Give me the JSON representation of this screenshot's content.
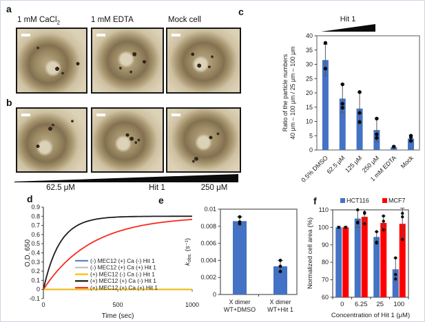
{
  "panels": {
    "a": {
      "label": "a",
      "images": [
        {
          "title_main": "1 mM CaCl",
          "title_sub": "2"
        },
        {
          "title_main": "1 mM EDTA",
          "title_sub": ""
        },
        {
          "title_main": "Mock cell",
          "title_sub": ""
        }
      ]
    },
    "b": {
      "label": "b",
      "gradient_labels": [
        "62.5 μM",
        "Hit 1",
        "250 μM"
      ]
    },
    "c": {
      "label": "c"
    },
    "d": {
      "label": "d"
    },
    "e": {
      "label": "e"
    },
    "f": {
      "label": "f"
    }
  },
  "colors": {
    "bar_blue": "#4472C4",
    "bar_red": "#FE0000",
    "line_blue": "#5B84D0",
    "line_gray": "#BFBFBF",
    "line_yellow": "#FFC000",
    "line_black": "#1A1A1A",
    "line_red": "#F8281C",
    "frame": "#808080",
    "axis": "#404040",
    "error": "#595959",
    "dot": "#0a0a0a"
  },
  "chart_data": [
    {
      "id": "c",
      "type": "bar",
      "title": "Hit 1",
      "ylabel_lines": [
        "Ratio of the particle numbers",
        "40 μm – 100 μm / 25 μm – 100 μm"
      ],
      "categories": [
        "0.5% DMSO",
        "62.5 μM",
        "125 μM",
        "250 μM",
        "1 mM EDTA",
        "Mock"
      ],
      "values": [
        31.5,
        18,
        14.5,
        7,
        1,
        4
      ],
      "errors": [
        5.5,
        5,
        5.5,
        4,
        0.4,
        1.2
      ],
      "points": [
        [
          37.5,
          28.5
        ],
        [
          23,
          16.2,
          14.8
        ],
        [
          20.3,
          13,
          9.8
        ],
        [
          11,
          5.5,
          4.2
        ],
        [
          1.2
        ],
        [
          5,
          4.5,
          3.2
        ]
      ],
      "ylim": [
        0,
        40
      ],
      "ytick_step": 5,
      "grid": false,
      "legend": "none"
    },
    {
      "id": "d",
      "type": "line",
      "xlabel": "Time (sec)",
      "ylabel": "O.D. 650",
      "xlim": [
        0,
        1000
      ],
      "ylim": [
        -0.1,
        0.9
      ],
      "xticks": [
        0,
        500,
        1000
      ],
      "ytick_step": 0.1,
      "legend_position": "inside-right",
      "series": [
        {
          "name": "(-) MEC12 (+) Ca (-) Hit 1",
          "color_key": "line_blue",
          "model": "flat",
          "value": 0
        },
        {
          "name": "(-) MEC12 (+) Ca (+) Hit 1",
          "color_key": "line_gray",
          "model": "flat",
          "value": 0
        },
        {
          "name": "(+) MEC12 (-) Ca (-) Hit 1",
          "color_key": "line_yellow",
          "model": "flat",
          "value": 0
        },
        {
          "name": "(+) MEC12 (+) Ca (-) Hit 1",
          "color_key": "line_black",
          "model": "exp_rise",
          "amplitude": 0.8,
          "tau": 110
        },
        {
          "name": "(+) MEC12 (+) Ca (+) Hit 1",
          "color_key": "line_red",
          "model": "exp_rise",
          "amplitude": 0.8,
          "tau": 320
        }
      ]
    },
    {
      "id": "e",
      "type": "bar",
      "ylabel_parts": {
        "k": "k",
        "sub": "obs.",
        "rest": " (s⁻¹)"
      },
      "categories": [
        [
          "X dimer",
          "WT+DMSO"
        ],
        [
          "X dimer",
          "WT+Hit 1"
        ]
      ],
      "values": [
        0.0086,
        0.0033
      ],
      "errors": [
        0.0005,
        0.0007
      ],
      "points": [
        [
          0.0091,
          0.0085,
          0.0083
        ],
        [
          0.004,
          0.0033,
          0.0027
        ]
      ],
      "ylim": [
        0,
        0.01
      ],
      "ytick_step": 0.002,
      "grid": false
    },
    {
      "id": "f",
      "type": "grouped_bar",
      "xlabel": "Concentration of Hit 1 (μM)",
      "ylabel": "Normalized cell area (%)",
      "categories": [
        "0",
        "6.25",
        "25",
        "100"
      ],
      "ylim": [
        60,
        110
      ],
      "ytick_step": 10,
      "legend_position": "top",
      "series": [
        {
          "name": "HCT116",
          "color_key": "bar_blue",
          "values": [
            100,
            105,
            94.5,
            76
          ],
          "errors": [
            0.6,
            5,
            3,
            6.5
          ],
          "points": [
            [
              100,
              100
            ],
            [
              110,
              103,
              102.5
            ],
            [
              97.5,
              91.5,
              91
            ],
            [
              82.5,
              73,
              70.5
            ]
          ]
        },
        {
          "name": "MCF7",
          "color_key": "bar_red",
          "values": [
            100,
            106,
            102.5,
            102
          ],
          "errors": [
            0.6,
            4,
            4,
            9
          ],
          "points": [
            [
              100,
              100
            ],
            [
              108.5,
              108,
              102
            ],
            [
              106.5,
              103.5,
              98.5
            ],
            [
              108,
              106,
              93
            ]
          ]
        }
      ]
    }
  ]
}
